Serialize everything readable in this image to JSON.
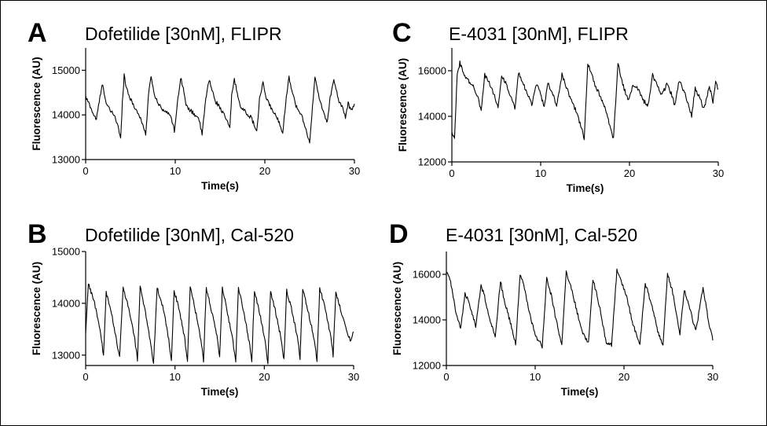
{
  "chart_data": [
    {
      "type": "line",
      "panel_label": "A",
      "title": "Dofetilide [30nM],  FLIPR",
      "xlabel": "Time(s)",
      "ylabel": "Fluorescence (AU)",
      "xlim": [
        0,
        30
      ],
      "ylim": [
        13000,
        15500
      ],
      "x_ticks": [
        0,
        10,
        20,
        30
      ],
      "y_ticks": [
        13000,
        14000,
        15000
      ],
      "series": [
        {
          "x": [
            0,
            0.5,
            0.9,
            1.2,
            1.6,
            1.9,
            2.3,
            2.7,
            3.2,
            3.6,
            3.9,
            4.1,
            4.3,
            4.5,
            5.0,
            5.4,
            5.8,
            6.2,
            6.7,
            7.0,
            7.3,
            7.6,
            8.0,
            8.5,
            9.0,
            9.5,
            9.9,
            10.3,
            10.6,
            10.9,
            11.2,
            11.7,
            12.2,
            12.6,
            13.0,
            13.4,
            13.8,
            14.1,
            14.5,
            14.9,
            15.3,
            15.7,
            16.1,
            16.3,
            16.6,
            17.0,
            17.4,
            17.9,
            18.4,
            18.8,
            19.1,
            19.4,
            19.8,
            20.2,
            20.6,
            21.0,
            21.3,
            21.6,
            22.0,
            22.4,
            22.7,
            23.1,
            23.4,
            23.7,
            24.2,
            24.6,
            25.0,
            25.4,
            25.6,
            25.9,
            26.3,
            26.6,
            27.0,
            27.3,
            27.7,
            28.2,
            28.7,
            29.0,
            29.3,
            29.6,
            30.0
          ],
          "values": [
            14400,
            14200,
            14000,
            13900,
            14400,
            14700,
            14250,
            14100,
            14000,
            13750,
            13450,
            14300,
            14900,
            14650,
            14350,
            14200,
            14050,
            13900,
            13550,
            14400,
            14900,
            14500,
            14300,
            14150,
            14050,
            14000,
            13650,
            14350,
            14850,
            14600,
            14200,
            14100,
            14000,
            13950,
            13550,
            14350,
            14800,
            14550,
            14300,
            14200,
            14050,
            13900,
            13700,
            14450,
            14800,
            14400,
            14150,
            14050,
            13950,
            13800,
            13600,
            14350,
            14700,
            14350,
            14200,
            14050,
            13950,
            13850,
            13600,
            14400,
            14850,
            14500,
            14250,
            14100,
            13950,
            13650,
            13400,
            14350,
            14850,
            14500,
            14250,
            14000,
            13850,
            14400,
            14800,
            14350,
            14150,
            13950,
            14250,
            14100,
            14250
          ]
        }
      ]
    },
    {
      "type": "line",
      "panel_label": "B",
      "title": "Dofetilide [30nM],  Cal-520",
      "xlabel": "Time(s)",
      "ylabel": "Fluorescence (AU)",
      "xlim": [
        0,
        30
      ],
      "ylim": [
        12800,
        15000
      ],
      "x_ticks": [
        0,
        10,
        20,
        30
      ],
      "y_ticks": [
        13000,
        14000,
        15000
      ],
      "series": [
        {
          "x": [
            0,
            0.3,
            1.0,
            1.6,
            2.0,
            2.3,
            2.9,
            3.5,
            3.8,
            4.2,
            4.9,
            5.5,
            5.8,
            6.1,
            6.7,
            7.3,
            7.6,
            8.0,
            8.7,
            9.3,
            9.6,
            9.9,
            10.5,
            11.1,
            11.4,
            11.7,
            12.3,
            12.9,
            13.2,
            13.5,
            14.1,
            14.7,
            15.0,
            15.3,
            15.9,
            16.5,
            16.8,
            17.1,
            17.7,
            18.3,
            18.6,
            18.9,
            19.5,
            20.1,
            20.4,
            20.7,
            21.3,
            21.9,
            22.2,
            22.5,
            23.1,
            23.7,
            24.0,
            24.3,
            24.9,
            25.6,
            25.9,
            26.2,
            26.8,
            27.4,
            27.7,
            28.0,
            28.6,
            29.2,
            29.7,
            30.0
          ],
          "values": [
            13400,
            14400,
            14000,
            13500,
            13000,
            14200,
            13800,
            13250,
            12950,
            14300,
            13850,
            13300,
            12900,
            14350,
            13800,
            13200,
            12850,
            14300,
            13900,
            13300,
            12900,
            14250,
            13850,
            13300,
            12900,
            14300,
            13850,
            13300,
            12900,
            14300,
            13850,
            13350,
            12950,
            14300,
            13800,
            13250,
            12900,
            14300,
            13850,
            13250,
            12900,
            14250,
            13800,
            13250,
            12850,
            14250,
            13800,
            13300,
            12900,
            14250,
            13850,
            13350,
            12950,
            14300,
            13850,
            13300,
            12900,
            14300,
            13900,
            13400,
            13000,
            14200,
            13850,
            13500,
            13250,
            13450
          ]
        }
      ]
    },
    {
      "type": "line",
      "panel_label": "C",
      "title": "E-4031 [30nM],  FLIPR",
      "xlabel": "Time(s)",
      "ylabel": "Fluorescence (AU)",
      "xlim": [
        0,
        30
      ],
      "ylim": [
        12000,
        17000
      ],
      "x_ticks": [
        0,
        10,
        20,
        30
      ],
      "y_ticks": [
        12000,
        14000,
        16000
      ],
      "series": [
        {
          "x": [
            0,
            0.3,
            0.6,
            0.9,
            1.3,
            1.8,
            2.4,
            2.9,
            3.3,
            3.7,
            4.2,
            4.8,
            5.2,
            5.6,
            6.2,
            6.7,
            7.1,
            7.5,
            8.0,
            8.6,
            9.0,
            9.5,
            9.9,
            10.4,
            10.8,
            11.3,
            11.8,
            12.4,
            12.8,
            13.3,
            13.9,
            14.5,
            14.9,
            15.3,
            15.7,
            16.2,
            16.7,
            17.3,
            17.7,
            18.2,
            18.7,
            19.0,
            19.4,
            19.9,
            20.4,
            21.0,
            21.5,
            22.1,
            22.6,
            23.1,
            23.6,
            24.2,
            24.7,
            25.1,
            25.6,
            26.1,
            26.6,
            27.0,
            27.4,
            27.9,
            28.4,
            29.0,
            29.4,
            29.7,
            30.0
          ],
          "values": [
            13300,
            13100,
            15800,
            16350,
            15900,
            15600,
            15300,
            14900,
            14250,
            15800,
            15500,
            14900,
            14400,
            15800,
            15350,
            14800,
            14300,
            15900,
            15450,
            14900,
            14500,
            15400,
            15100,
            14400,
            15450,
            15100,
            14450,
            15850,
            15400,
            14850,
            14300,
            13600,
            13000,
            16300,
            15900,
            15300,
            14900,
            14300,
            13700,
            13000,
            16300,
            15800,
            15200,
            14700,
            15400,
            15200,
            14700,
            14500,
            15800,
            15400,
            14900,
            15400,
            15000,
            14500,
            15550,
            15150,
            14600,
            14000,
            15250,
            14800,
            14300,
            15300,
            14650,
            15500,
            15200
          ]
        }
      ]
    },
    {
      "type": "line",
      "panel_label": "D",
      "title": "E-4031 [30nM],  Cal-520",
      "xlabel": "Time(s)",
      "ylabel": "Fluorescence (AU)",
      "xlim": [
        0,
        30
      ],
      "ylim": [
        12000,
        17000
      ],
      "x_ticks": [
        0,
        10,
        20,
        30
      ],
      "y_ticks": [
        12000,
        14000,
        16000
      ],
      "series": [
        {
          "x": [
            0,
            0.4,
            1.0,
            1.6,
            2.1,
            2.6,
            3.3,
            3.9,
            4.3,
            4.8,
            5.5,
            6.1,
            6.5,
            7.2,
            7.8,
            8.3,
            8.8,
            9.3,
            10.0,
            10.8,
            11.3,
            11.8,
            12.4,
            13.0,
            13.5,
            14.0,
            14.5,
            15.2,
            16.0,
            16.5,
            17.3,
            18.0,
            18.6,
            19.2,
            19.8,
            20.3,
            21.0,
            21.8,
            22.4,
            23.1,
            23.8,
            24.4,
            24.9,
            25.5,
            26.3,
            26.8,
            27.4,
            28.1,
            28.9,
            29.5,
            30.0
          ],
          "values": [
            16100,
            15800,
            14500,
            13600,
            15200,
            14700,
            13700,
            15500,
            15050,
            14100,
            13300,
            15700,
            14900,
            13900,
            12900,
            16000,
            15400,
            14400,
            13300,
            12850,
            15800,
            15100,
            13900,
            12900,
            16100,
            15500,
            14700,
            13600,
            12950,
            15800,
            14500,
            13000,
            12900,
            16150,
            15600,
            15000,
            13800,
            12950,
            15600,
            14700,
            13500,
            12850,
            16000,
            15200,
            13400,
            15300,
            14500,
            13500,
            15400,
            14000,
            13100
          ]
        }
      ]
    }
  ]
}
